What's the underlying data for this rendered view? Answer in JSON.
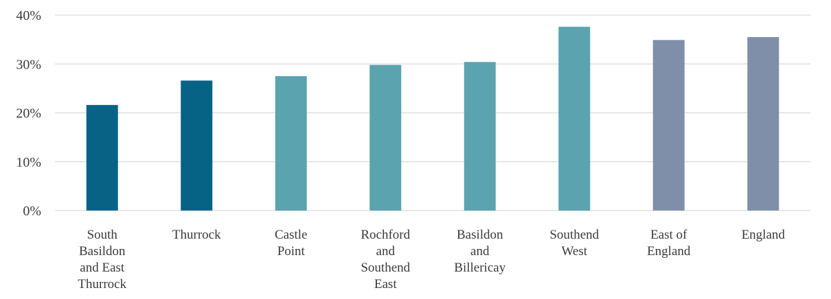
{
  "chart_data": {
    "type": "bar",
    "title": "",
    "xlabel": "",
    "ylabel": "",
    "ylim": [
      0,
      40
    ],
    "yticks": [
      "0%",
      "10%",
      "20%",
      "30%",
      "40%"
    ],
    "grid": true,
    "categories": [
      [
        "South",
        "Basildon",
        "and East",
        "Thurrock"
      ],
      [
        "Thurrock"
      ],
      [
        "Castle",
        "Point"
      ],
      [
        "Rochford",
        "and",
        "Southend",
        "East"
      ],
      [
        "Basildon",
        "and",
        "Billericay"
      ],
      [
        "Southend",
        "West"
      ],
      [
        "East of",
        "England"
      ],
      [
        "England"
      ]
    ],
    "values": [
      21.6,
      26.6,
      27.5,
      29.8,
      30.4,
      37.6,
      34.9,
      35.5
    ],
    "bar_colors": [
      "#066386",
      "#066386",
      "#5aa3af",
      "#5aa3af",
      "#5aa3af",
      "#5aa3af",
      "#7f8fa9",
      "#7f8fa9"
    ]
  }
}
